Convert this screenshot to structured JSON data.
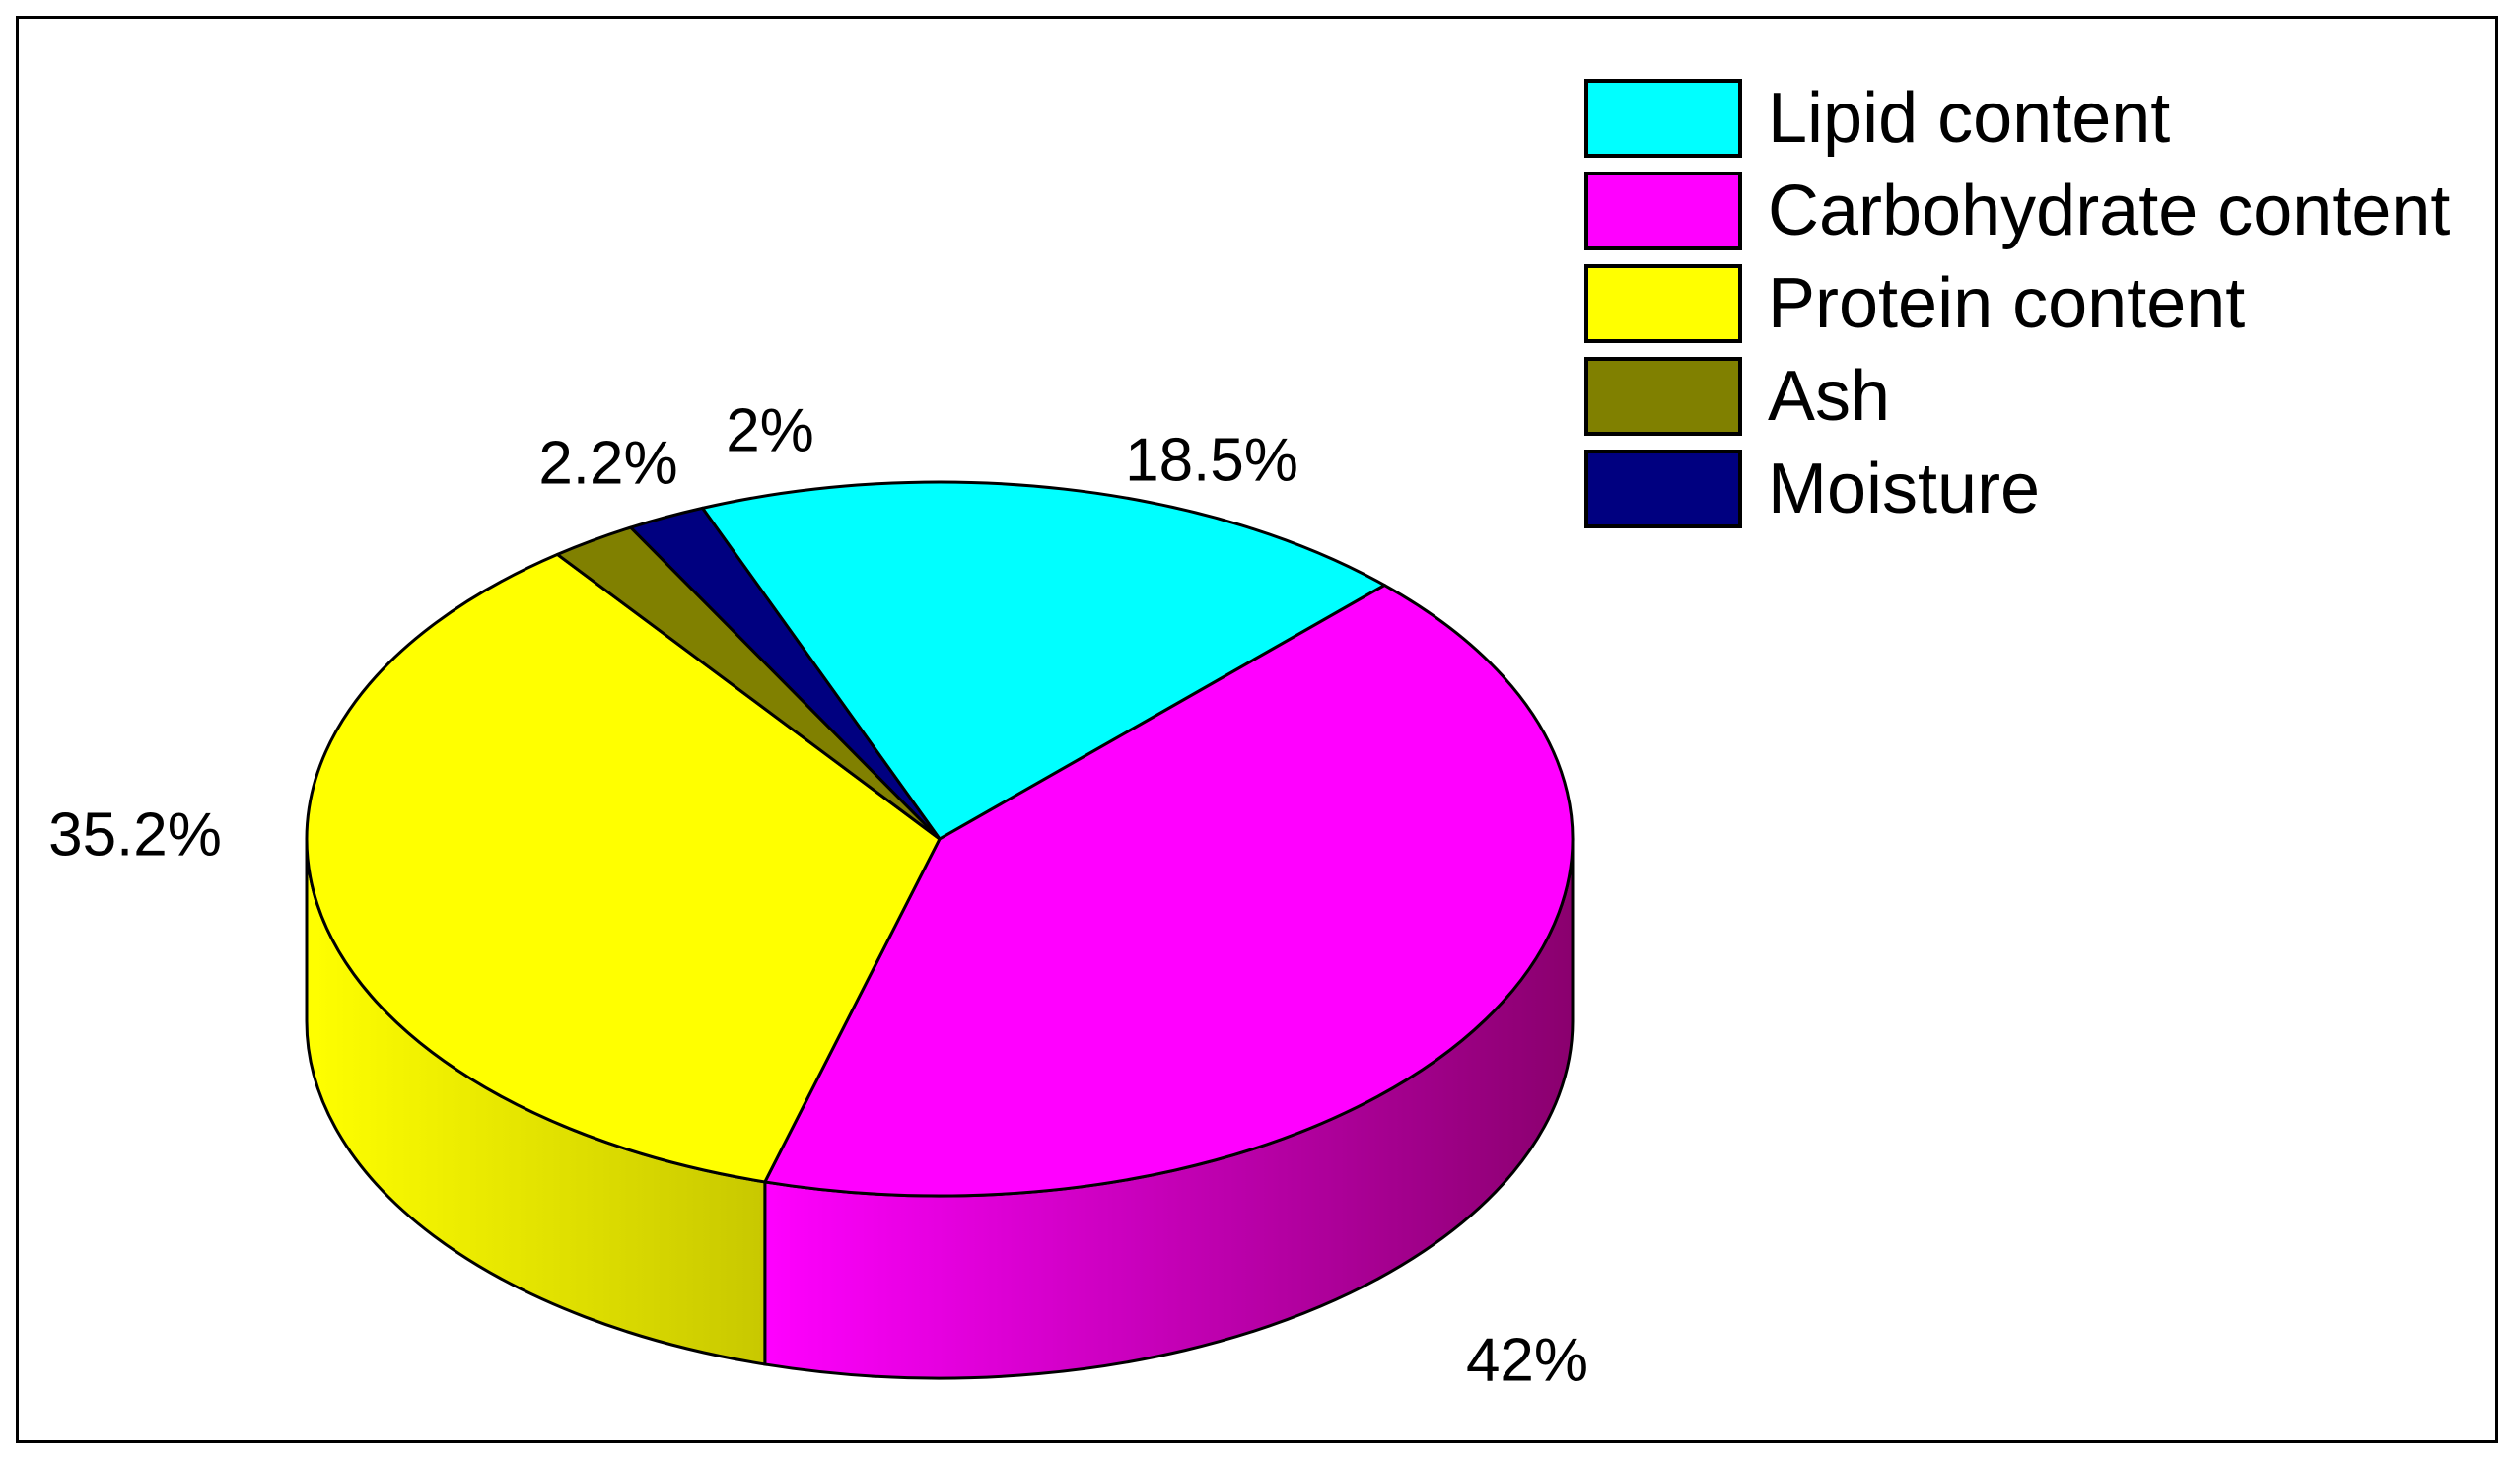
{
  "chart_data": {
    "type": "pie",
    "variant": "3d",
    "title": "",
    "slices": [
      {
        "name": "Lipid content",
        "value": 18.5,
        "label": "18.5%",
        "color": "#00FFFF",
        "side_color": "#00B0B0"
      },
      {
        "name": "Carbohydrate content",
        "value": 42,
        "label": "42%",
        "color": "#FF00FF",
        "side_color": "#8A006E"
      },
      {
        "name": "Protein content",
        "value": 35.2,
        "label": "35.2%",
        "color": "#FFFF00",
        "side_color": "#C8C800"
      },
      {
        "name": "Ash",
        "value": 2.2,
        "label": "2.2%",
        "color": "#808000",
        "side_color": "#555500"
      },
      {
        "name": "Moisture",
        "value": 2,
        "label": "2%",
        "color": "#000080",
        "side_color": "#000050"
      }
    ],
    "legend_position": "top-right"
  }
}
